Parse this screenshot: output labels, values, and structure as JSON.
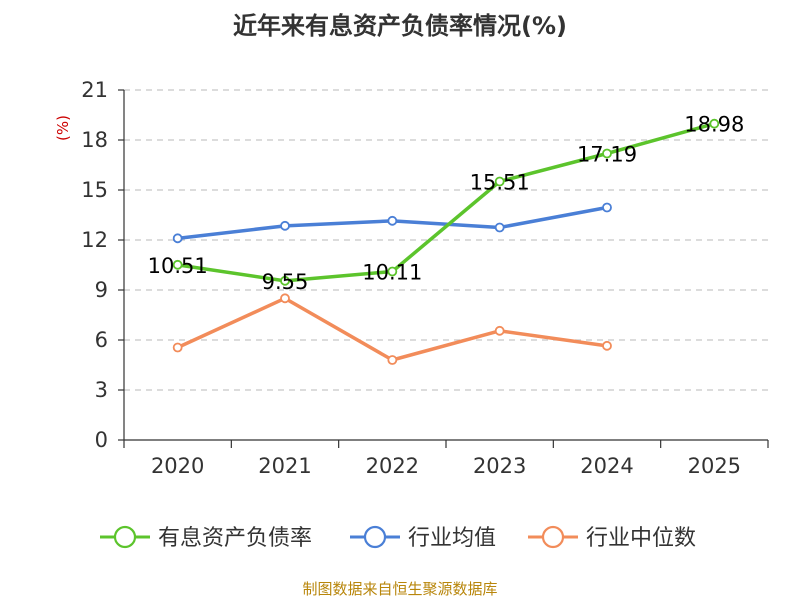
{
  "chart_data": {
    "type": "line",
    "title": "近年来有息资产负债率情况(%)",
    "ylabel": "(%)",
    "xlabel": "",
    "categories": [
      "2020",
      "2021",
      "2022",
      "2023",
      "2024",
      "2025"
    ],
    "ylim": [
      0,
      21
    ],
    "yticks": [
      0,
      3,
      6,
      9,
      12,
      15,
      18,
      21
    ],
    "grid": true,
    "legend_position": "bottom",
    "series": [
      {
        "name": "有息资产负债率",
        "color": "#5cc42c",
        "values": [
          10.51,
          9.55,
          10.11,
          15.51,
          17.19,
          18.98
        ],
        "labels": [
          "10.51",
          "9.55",
          "10.11",
          "15.51",
          "17.19",
          "18.98"
        ]
      },
      {
        "name": "行业均值",
        "color": "#4a7fd6",
        "values": [
          12.1,
          12.85,
          13.15,
          12.75,
          13.95,
          null
        ]
      },
      {
        "name": "行业中位数",
        "color": "#f28c5a",
        "values": [
          5.55,
          8.5,
          4.8,
          6.55,
          5.65,
          null
        ]
      }
    ]
  },
  "source_note": "制图数据来自恒生聚源数据库"
}
